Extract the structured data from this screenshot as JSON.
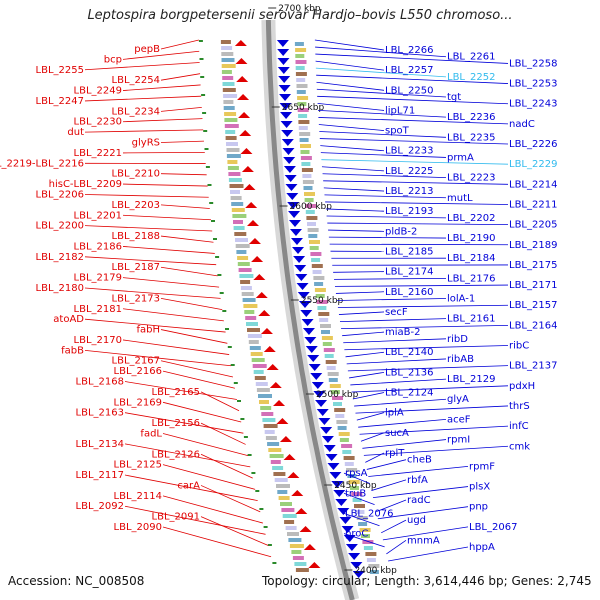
{
  "title": "Leptospira borgpetersenii serovar Hardjo–bovis L550 chromoso...",
  "accession": "Accession: NC_008508",
  "topology": "Topology: circular; Length: 3,614,446 bp; Genes: 2,745",
  "colors": {
    "forward": "#e00000",
    "reverse": "#0000d8",
    "highlight": "#33bbee",
    "backbone": "#888888",
    "marker": "#2a8a2a"
  },
  "kbp_ticks": [
    "2700 kbp",
    "2650 kbp",
    "2600 kbp",
    "2550 kbp",
    "2500 kbp",
    "2450 kbp",
    "2400 kbp"
  ],
  "left_labels": [
    "pepB",
    "bcp",
    "LBL_2255",
    "LBL_2254",
    "LBL_2249",
    "LBL_2247",
    "LBL_2234",
    "LBL_2230",
    "dut",
    "glyRS",
    "LBL_2221",
    "LBL_2219-LBL_2216",
    "LBL_2210",
    "hisC-LBL_2209",
    "LBL_2206",
    "LBL_2203",
    "LBL_2201",
    "LBL_2200",
    "LBL_2188",
    "LBL_2186",
    "LBL_2182",
    "LBL_2187",
    "LBL_2179",
    "LBL_2180",
    "LBL_2173",
    "LBL_2181",
    "atoAD",
    "fabH",
    "LBL_2170",
    "fabB",
    "LBL_2167",
    "LBL_2166",
    "LBL_2168",
    "LBL_2165",
    "LBL_2169",
    "LBL_2163",
    "LBL_2156",
    "fadL",
    "LBL_2134",
    "LBL_2126",
    "LBL_2125",
    "LBL_2117",
    "carA",
    "LBL_2114",
    "LBL_2092",
    "LBL_2091",
    "LBL_2090"
  ],
  "right_labels": [
    "LBL_2266",
    "LBL_2261",
    "LBL_2258",
    "LBL_2257",
    "LBL_2252",
    "LBL_2253",
    "LBL_2250",
    "tgt",
    "LBL_2243",
    "lipL71",
    "LBL_2236",
    "nadC",
    "spoT",
    "LBL_2235",
    "LBL_2226",
    "LBL_2233",
    "prmA",
    "LBL_2229",
    "LBL_2225",
    "LBL_2223",
    "LBL_2214",
    "LBL_2213",
    "mutL",
    "LBL_2211",
    "LBL_2193",
    "LBL_2202",
    "LBL_2205",
    "pldB-2",
    "LBL_2190",
    "LBL_2189",
    "LBL_2185",
    "LBL_2184",
    "LBL_2175",
    "LBL_2174",
    "LBL_2176",
    "LBL_2171",
    "LBL_2160",
    "lolA-1",
    "LBL_2157",
    "secF",
    "LBL_2161",
    "LBL_2164",
    "miaB-2",
    "ribD",
    "ribC",
    "LBL_2140",
    "ribAB",
    "LBL_2137",
    "LBL_2136",
    "LBL_2129",
    "pdxH",
    "LBL_2124",
    "glyA",
    "thrS",
    "lplA",
    "aceF",
    "infC",
    "sucA",
    "rpmI",
    "cmk",
    "rplT",
    "cheB",
    "rpmF",
    "rpsA",
    "rbfA",
    "plsX",
    "truB",
    "radC",
    "pnp",
    "LBL_2076",
    "ugd",
    "LBL_2067",
    "proC",
    "mnmA",
    "hppA"
  ]
}
